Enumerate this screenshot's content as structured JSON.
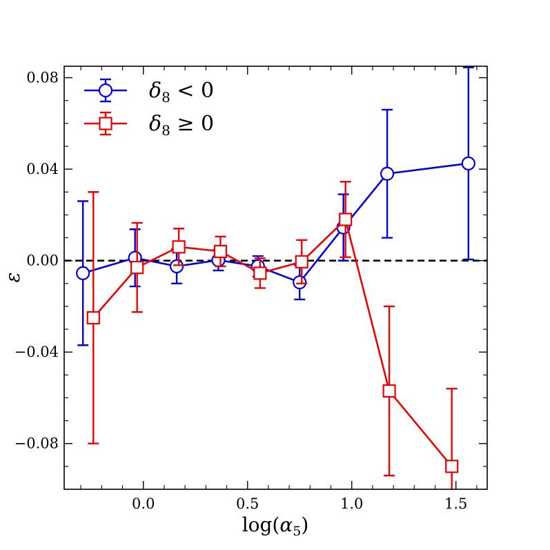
{
  "chart_data": {
    "type": "scatter",
    "xlabel": "log(α5)",
    "ylabel": "ε",
    "xlim": [
      -0.38,
      1.65
    ],
    "ylim": [
      -0.1,
      0.085
    ],
    "xticks": [
      0.0,
      0.5,
      1.0,
      1.5
    ],
    "xtick_labels": [
      "0.0",
      "0.5",
      "1.0",
      "1.5"
    ],
    "yticks": [
      -0.08,
      -0.04,
      0.0,
      0.04,
      0.08
    ],
    "ytick_labels": [
      "−0.08",
      "−0.04",
      "0.00",
      "0.04",
      "0.08"
    ],
    "reference_line": {
      "y": 0.0,
      "style": "dashed",
      "color": "#000000"
    },
    "legend_position": "top-left",
    "series": [
      {
        "name": "δ8 < 0",
        "label_parts": {
          "symbol": "δ",
          "sub": "8",
          "relation": "< 0"
        },
        "color": "#0000dd",
        "marker": "circle",
        "points": [
          {
            "x": -0.29,
            "y": -0.0055,
            "err": 0.0315
          },
          {
            "x": -0.04,
            "y": 0.0012,
            "err": 0.0125
          },
          {
            "x": 0.16,
            "y": -0.0025,
            "err": 0.0075
          },
          {
            "x": 0.36,
            "y": 0.0002,
            "err": 0.0045
          },
          {
            "x": 0.55,
            "y": -0.0025,
            "err": 0.0045
          },
          {
            "x": 0.75,
            "y": -0.0095,
            "err": 0.0075
          },
          {
            "x": 0.96,
            "y": 0.0145,
            "err": 0.0145
          },
          {
            "x": 1.17,
            "y": 0.038,
            "err": 0.028
          },
          {
            "x": 1.56,
            "y": 0.0425,
            "err": 0.042
          }
        ]
      },
      {
        "name": "δ8 ≥ 0",
        "label_parts": {
          "symbol": "δ",
          "sub": "8",
          "relation": "≥ 0"
        },
        "color": "#ee0000",
        "marker": "square",
        "points": [
          {
            "x": -0.24,
            "y": -0.025,
            "err": 0.055
          },
          {
            "x": -0.03,
            "y": -0.003,
            "err": 0.0195
          },
          {
            "x": 0.17,
            "y": 0.006,
            "err": 0.008
          },
          {
            "x": 0.37,
            "y": 0.004,
            "err": 0.0065
          },
          {
            "x": 0.56,
            "y": -0.0055,
            "err": 0.0065
          },
          {
            "x": 0.76,
            "y": -0.0005,
            "err": 0.0095
          },
          {
            "x": 0.97,
            "y": 0.018,
            "err": 0.0165
          },
          {
            "x": 1.18,
            "y": -0.057,
            "err": 0.037
          },
          {
            "x": 1.48,
            "y": -0.09,
            "err": 0.034
          }
        ]
      }
    ]
  }
}
